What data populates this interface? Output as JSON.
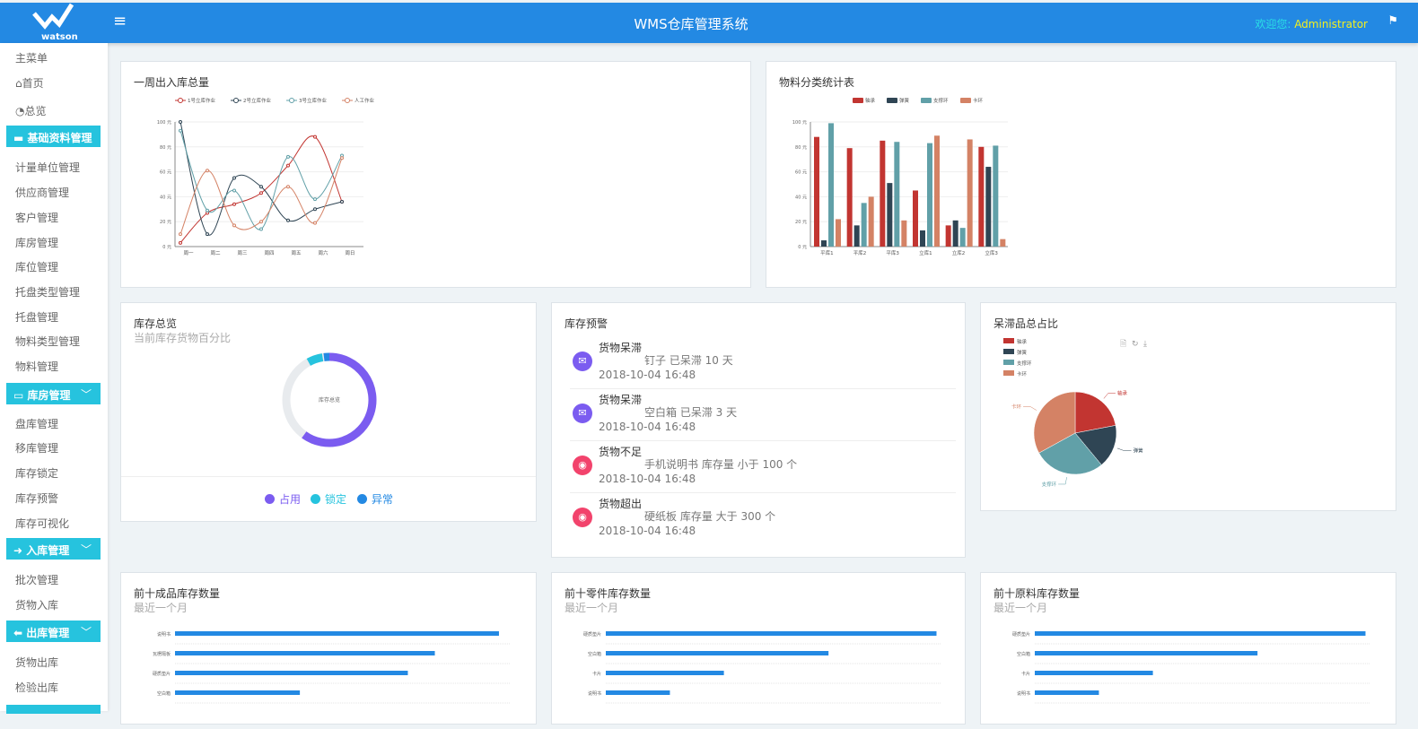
{
  "header": {
    "title": "WMS仓库管理系统",
    "welcome_label": "欢迎您:",
    "user": "Administrator",
    "logo_text": "watson"
  },
  "sidebar": {
    "items": [
      {
        "label": "主菜单",
        "type": "item"
      },
      {
        "label": "首页",
        "type": "item",
        "icon": "home-icon"
      },
      {
        "label": "总览",
        "type": "item",
        "icon": "dashboard-icon"
      },
      {
        "label": "基础资料管理",
        "type": "group",
        "icon": "folder-icon"
      },
      {
        "label": "计量单位管理",
        "type": "item"
      },
      {
        "label": "供应商管理",
        "type": "item"
      },
      {
        "label": "客户管理",
        "type": "item"
      },
      {
        "label": "库房管理",
        "type": "item"
      },
      {
        "label": "库位管理",
        "type": "item"
      },
      {
        "label": "托盘类型管理",
        "type": "item"
      },
      {
        "label": "托盘管理",
        "type": "item"
      },
      {
        "label": "物料类型管理",
        "type": "item"
      },
      {
        "label": "物料管理",
        "type": "item"
      },
      {
        "label": "库房管理",
        "type": "group",
        "icon": "warehouse-icon"
      },
      {
        "label": "盘库管理",
        "type": "item"
      },
      {
        "label": "移库管理",
        "type": "item"
      },
      {
        "label": "库存锁定",
        "type": "item"
      },
      {
        "label": "库存预警",
        "type": "item"
      },
      {
        "label": "库存可视化",
        "type": "item"
      },
      {
        "label": "入库管理",
        "type": "group",
        "icon": "arrow-right-icon"
      },
      {
        "label": "批次管理",
        "type": "item"
      },
      {
        "label": "货物入库",
        "type": "item"
      },
      {
        "label": "出库管理",
        "type": "group",
        "icon": "arrow-left-icon"
      },
      {
        "label": "货物出库",
        "type": "item"
      },
      {
        "label": "检验出库",
        "type": "item"
      }
    ]
  },
  "colors": {
    "red": "#c23531",
    "dark": "#2f4554",
    "teal": "#61a0a8",
    "orange": "#d48265",
    "blue": "#2389e3",
    "purple": "#7b5cf0",
    "cyan": "#26c3de"
  },
  "chart_data": [
    {
      "type": "line",
      "title": "一周出入库总量",
      "categories": [
        "周一",
        "周二",
        "周三",
        "周四",
        "周五",
        "周六",
        "周日"
      ],
      "ylim": [
        0,
        100
      ],
      "yticks": [
        "0 元",
        "20 元",
        "40 元",
        "60 元",
        "80 元",
        "100 元"
      ],
      "legend": "top",
      "series": [
        {
          "name": "1号立库作业",
          "values": [
            3,
            27,
            34,
            43,
            65,
            88,
            36
          ]
        },
        {
          "name": "2号立库作业",
          "values": [
            100,
            10,
            55,
            48,
            21,
            30,
            36
          ]
        },
        {
          "name": "3号立库作业",
          "values": [
            93,
            29,
            45,
            14,
            72,
            38,
            73
          ]
        },
        {
          "name": "人工作业",
          "values": [
            10,
            61,
            17,
            20,
            48,
            19,
            71
          ]
        }
      ]
    },
    {
      "type": "bar",
      "title": "物料分类统计表",
      "categories": [
        "平库1",
        "平库2",
        "平库3",
        "立库1",
        "立库2",
        "立库3"
      ],
      "ylim": [
        0,
        100
      ],
      "yticks": [
        "0 元",
        "20 元",
        "40 元",
        "60 元",
        "80 元",
        "100 元"
      ],
      "legend": "top",
      "series": [
        {
          "name": "轴承",
          "values": [
            88,
            79,
            85,
            45,
            17,
            80
          ]
        },
        {
          "name": "弹簧",
          "values": [
            5,
            17,
            51,
            13,
            21,
            64
          ]
        },
        {
          "name": "支撑环",
          "values": [
            99,
            35,
            84,
            83,
            15,
            81
          ]
        },
        {
          "name": "卡环",
          "values": [
            22,
            40,
            21,
            89,
            86,
            6
          ]
        }
      ]
    },
    {
      "type": "pie",
      "subtype": "donut",
      "title": "库存总览",
      "subtitle": "当前库存货物百分比",
      "center_label": "库存总览",
      "values": [
        {
          "name": "占用",
          "value": 60
        },
        {
          "name": "锁定",
          "value": 5
        },
        {
          "name": "异常",
          "value": 2
        }
      ]
    },
    {
      "type": "pie",
      "title": "呆滞品总占比",
      "legend": "top-left",
      "values": [
        {
          "name": "轴承",
          "value": 22
        },
        {
          "name": "弹簧",
          "value": 17
        },
        {
          "name": "支撑环",
          "value": 28
        },
        {
          "name": "卡环",
          "value": 33
        }
      ]
    },
    {
      "type": "bar",
      "orientation": "horizontal",
      "title": "前十成品库存数量",
      "subtitle": "最近一个月",
      "categories": [
        "说明书",
        "瓦楞隔板",
        "硬质垫片",
        "空白箱"
      ],
      "values": [
        96,
        77,
        69,
        37
      ]
    },
    {
      "type": "bar",
      "orientation": "horizontal",
      "title": "前十零件库存数量",
      "subtitle": "最近一个月",
      "categories": [
        "硬质垫片",
        "空白箱",
        "卡片",
        "说明书"
      ],
      "values": [
        98,
        66,
        35,
        19
      ]
    },
    {
      "type": "bar",
      "orientation": "horizontal",
      "title": "前十原料库存数量",
      "subtitle": "最近一个月",
      "categories": [
        "硬质垫片",
        "空白箱",
        "卡片",
        "说明书"
      ],
      "values": [
        98,
        66,
        35,
        19
      ]
    }
  ],
  "warnings": {
    "title": "库存预警",
    "items": [
      {
        "type": "货物呆滞",
        "detail": "钉子 已呆滞 10 天",
        "time": "2018-10-04 16:48",
        "icon": "mail-icon",
        "color": "#7b5cf0"
      },
      {
        "type": "货物呆滞",
        "detail": "空白箱 已呆滞 3 天",
        "time": "2018-10-04 16:48",
        "icon": "mail-icon",
        "color": "#7b5cf0"
      },
      {
        "type": "货物不足",
        "detail": "手机说明书 库存量 小于 100 个",
        "time": "2018-10-04 16:48",
        "icon": "globe-icon",
        "color": "#f2436c"
      },
      {
        "type": "货物超出",
        "detail": "硬纸板 库存量 大于 300 个",
        "time": "2018-10-04 16:48",
        "icon": "globe-icon",
        "color": "#f2436c"
      }
    ]
  }
}
